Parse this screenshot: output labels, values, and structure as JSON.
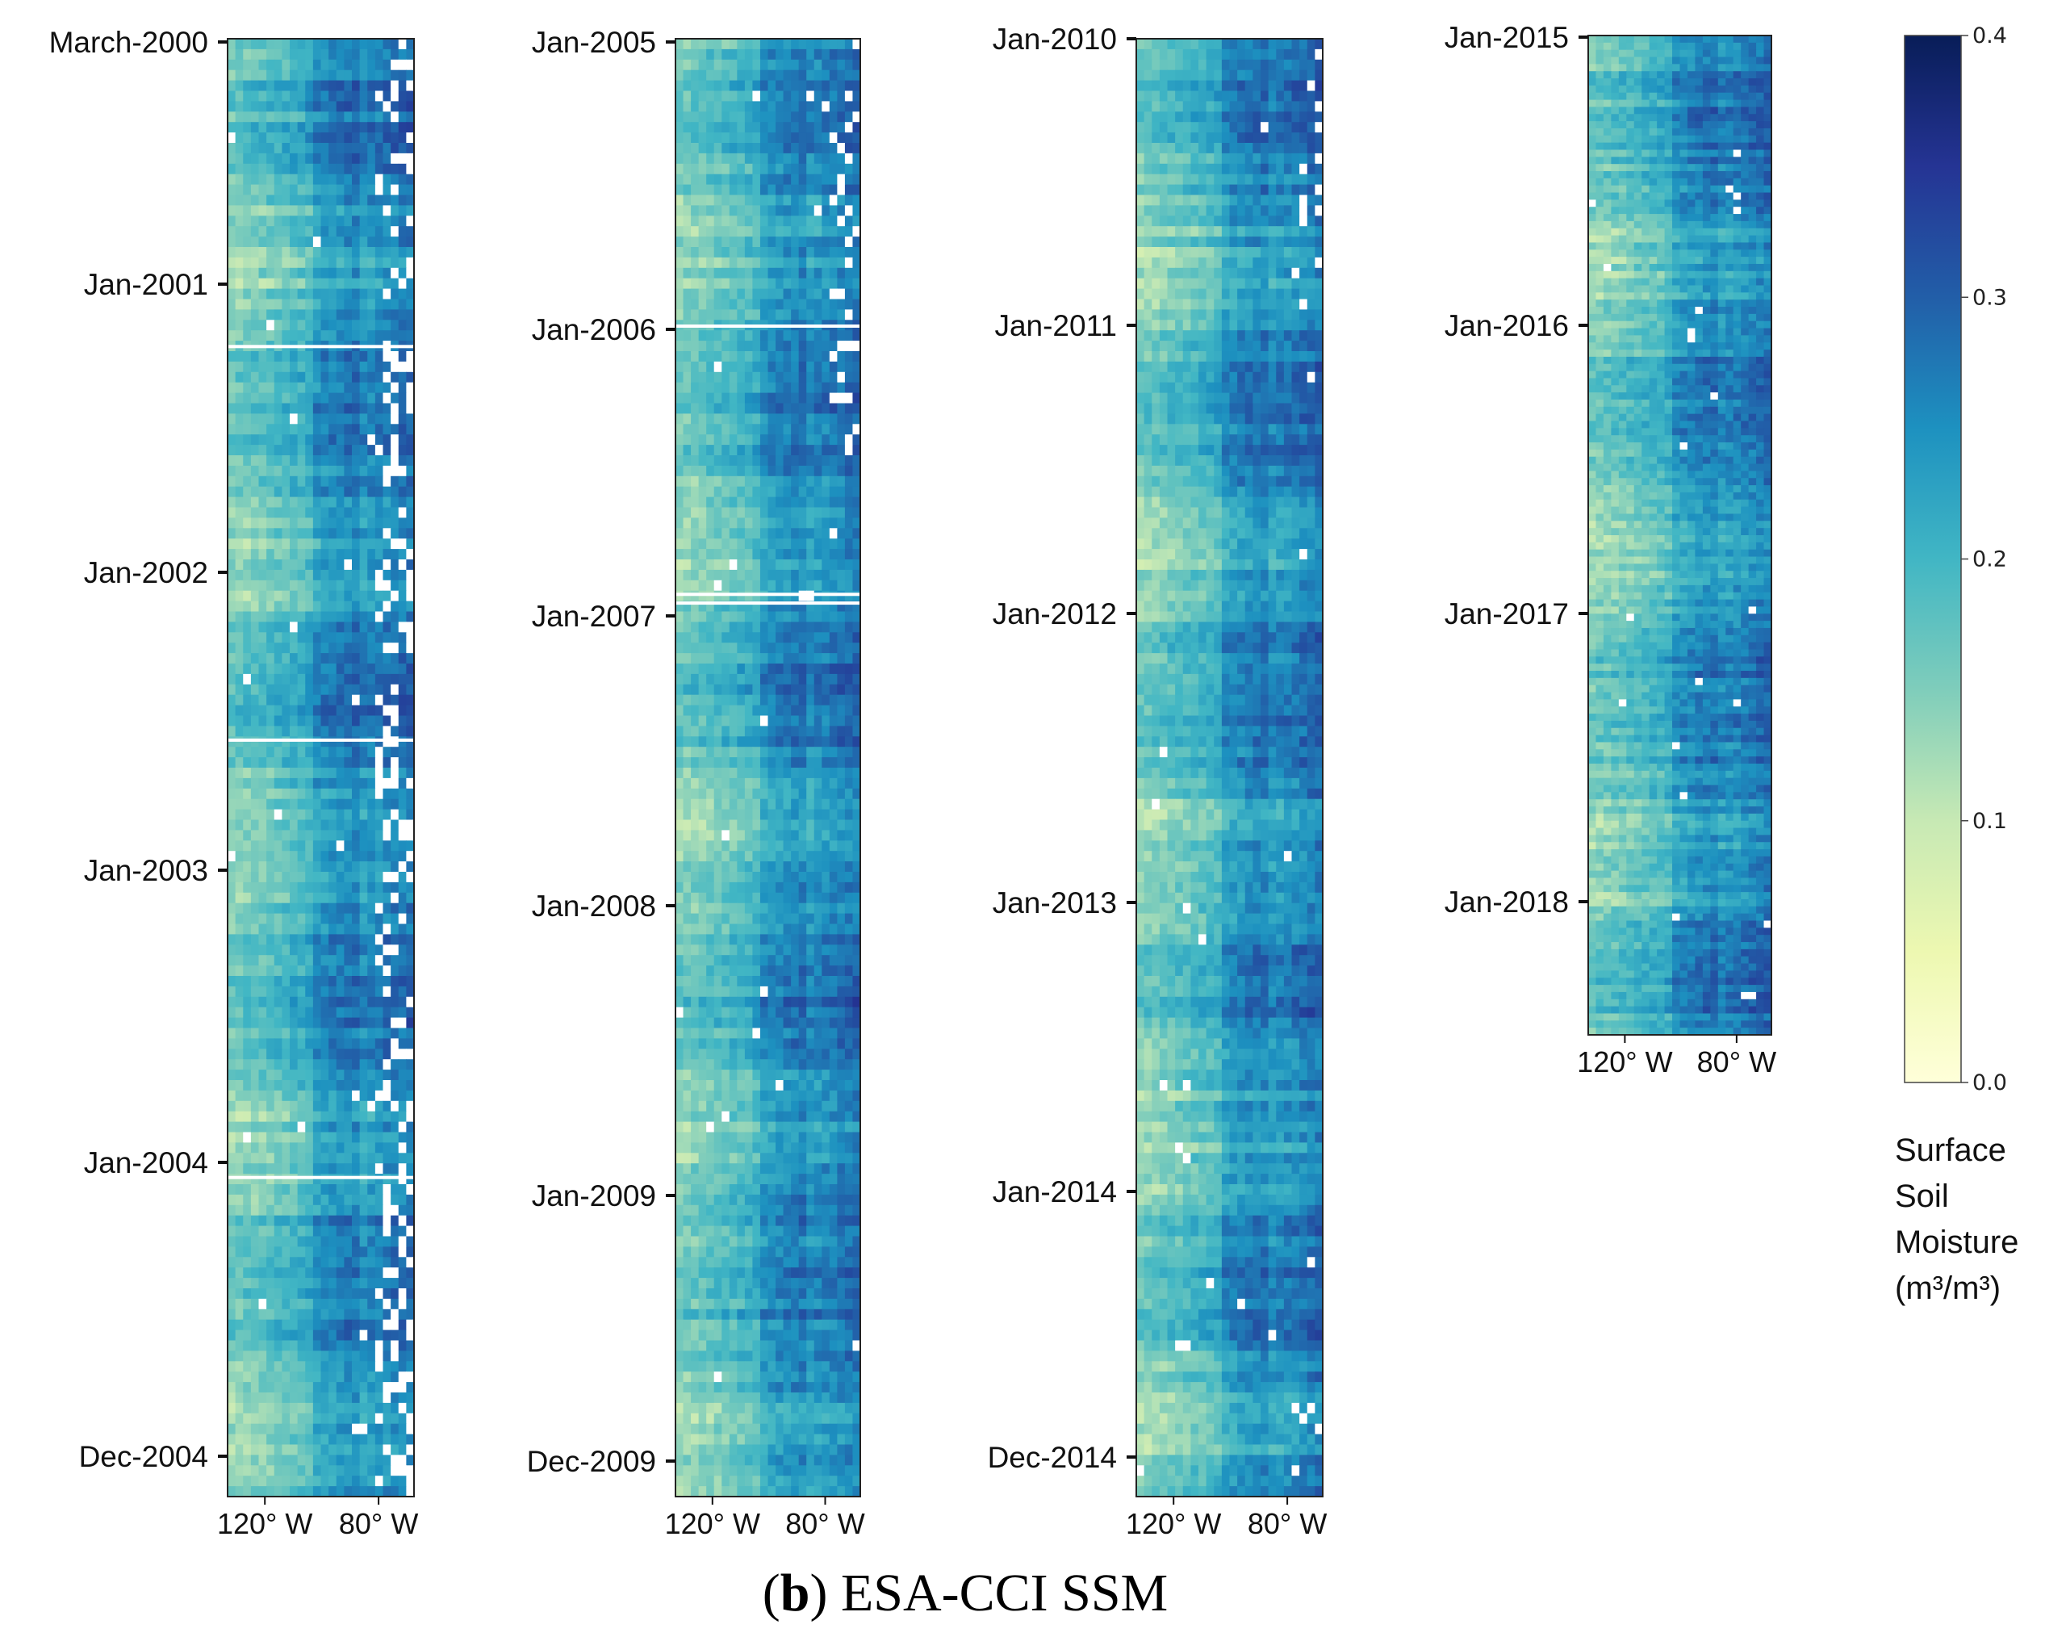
{
  "chart_data": {
    "type": "heatmap",
    "caption": {
      "prefix": "(",
      "letter": "b",
      "suffix": ") ESA-CCI SSM"
    },
    "x_axis": {
      "ticks": [
        "120° W",
        "80° W"
      ]
    },
    "panels": [
      {
        "y_ticks": [
          "March-2000",
          "Jan-2001",
          "Jan-2002",
          "Jan-2003",
          "Jan-2004",
          "Dec-2004"
        ]
      },
      {
        "y_ticks": [
          "Jan-2005",
          "Jan-2006",
          "Jan-2007",
          "Jan-2008",
          "Jan-2009",
          "Dec-2009"
        ]
      },
      {
        "y_ticks": [
          "Jan-2010",
          "Jan-2011",
          "Jan-2012",
          "Jan-2013",
          "Jan-2014",
          "Dec-2014"
        ]
      },
      {
        "y_ticks": [
          "Jan-2015",
          "Jan-2016",
          "Jan-2017",
          "Jan-2018"
        ]
      }
    ],
    "colorbar": {
      "min": 0.0,
      "max": 0.4,
      "ticks": [
        "0.0",
        "0.1",
        "0.2",
        "0.3",
        "0.4"
      ],
      "label_lines": [
        "Surface",
        "Soil",
        "Moisture",
        "(m³/m³)"
      ],
      "colormap": [
        "#ffffd9",
        "#edf8b1",
        "#c7e9b4",
        "#7fcdbb",
        "#41b6c4",
        "#1d91c0",
        "#225ea8",
        "#253494",
        "#081d58"
      ]
    }
  }
}
